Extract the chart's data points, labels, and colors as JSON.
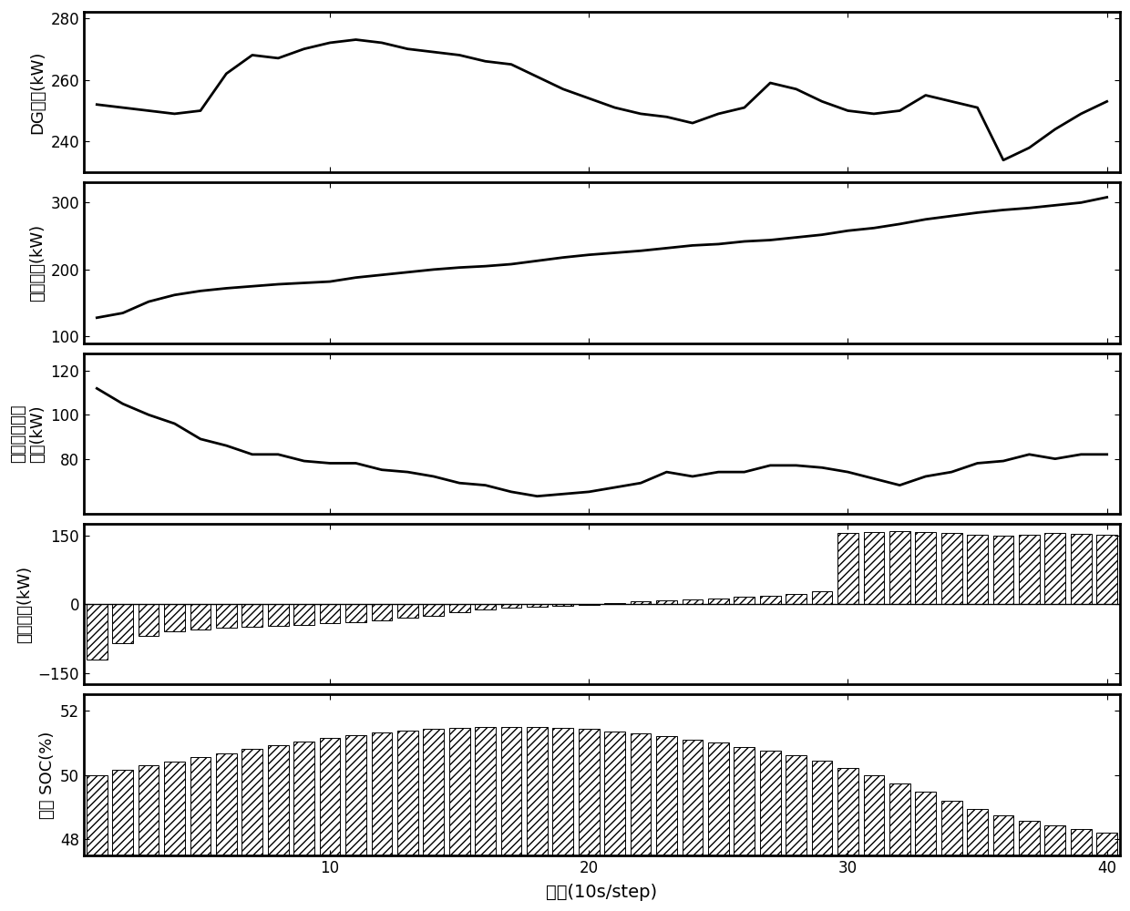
{
  "dg_ylabel": "DG出力(kW)",
  "load_ylabel": "负荷出力(kW)",
  "mt_ylabel": "微型燃气轮机\n出力(kW)",
  "ess_ylabel": "储能出力(kW)",
  "soc_ylabel": "储能 SOC(%)",
  "xlabel": "时步(10s/step)",
  "dg_ylim": [
    230,
    282
  ],
  "dg_yticks": [
    240,
    260,
    280
  ],
  "load_ylim": [
    90,
    330
  ],
  "load_yticks": [
    100,
    200,
    300
  ],
  "mt_ylim": [
    55,
    128
  ],
  "mt_yticks": [
    80,
    100,
    120
  ],
  "ess_ylim": [
    -175,
    175
  ],
  "ess_yticks": [
    -150,
    0,
    150
  ],
  "soc_ylim": [
    47.5,
    52.5
  ],
  "soc_yticks": [
    48,
    50,
    52
  ],
  "xlim": [
    0.5,
    40.5
  ],
  "xticks": [
    10,
    20,
    30,
    40
  ],
  "steps": 40,
  "dg_data": [
    252,
    251,
    250,
    249,
    250,
    262,
    268,
    267,
    270,
    272,
    273,
    272,
    270,
    269,
    268,
    266,
    265,
    261,
    257,
    254,
    251,
    249,
    248,
    246,
    249,
    251,
    259,
    257,
    253,
    250,
    249,
    250,
    255,
    253,
    251,
    234,
    238,
    244,
    249,
    253
  ],
  "load_data": [
    128,
    135,
    152,
    162,
    168,
    172,
    175,
    178,
    180,
    182,
    188,
    192,
    196,
    200,
    203,
    205,
    208,
    213,
    218,
    222,
    225,
    228,
    232,
    236,
    238,
    242,
    244,
    248,
    252,
    258,
    262,
    268,
    275,
    280,
    285,
    289,
    292,
    296,
    300,
    308
  ],
  "mt_data": [
    112,
    105,
    100,
    96,
    89,
    86,
    82,
    82,
    79,
    78,
    78,
    75,
    74,
    72,
    69,
    68,
    65,
    63,
    64,
    65,
    67,
    69,
    74,
    72,
    74,
    74,
    77,
    77,
    76,
    74,
    71,
    68,
    72,
    74,
    78,
    79,
    82,
    80,
    82,
    82
  ],
  "ess_data": [
    -120,
    -85,
    -70,
    -60,
    -55,
    -52,
    -50,
    -48,
    -45,
    -42,
    -40,
    -35,
    -30,
    -25,
    -18,
    -12,
    -8,
    -5,
    -3,
    -1,
    3,
    6,
    8,
    10,
    13,
    16,
    18,
    22,
    28,
    155,
    158,
    160,
    158,
    155,
    152,
    150,
    152,
    155,
    153,
    152
  ],
  "soc_data": [
    50.0,
    50.15,
    50.3,
    50.42,
    50.55,
    50.68,
    50.8,
    50.93,
    51.05,
    51.15,
    51.23,
    51.32,
    51.38,
    51.43,
    51.47,
    51.49,
    51.5,
    51.49,
    51.46,
    51.42,
    51.35,
    51.28,
    51.2,
    51.1,
    51.0,
    50.88,
    50.75,
    50.6,
    50.43,
    50.22,
    49.98,
    49.73,
    49.47,
    49.2,
    48.93,
    48.75,
    48.58,
    48.43,
    48.3,
    48.2
  ],
  "line_color": "#000000",
  "bar_facecolor": "white",
  "bar_edgecolor": "#000000",
  "hatch_pattern": "////",
  "background_color": "#ffffff",
  "linewidth": 2.0,
  "bar_linewidth": 0.7,
  "spine_linewidth": 2.0
}
